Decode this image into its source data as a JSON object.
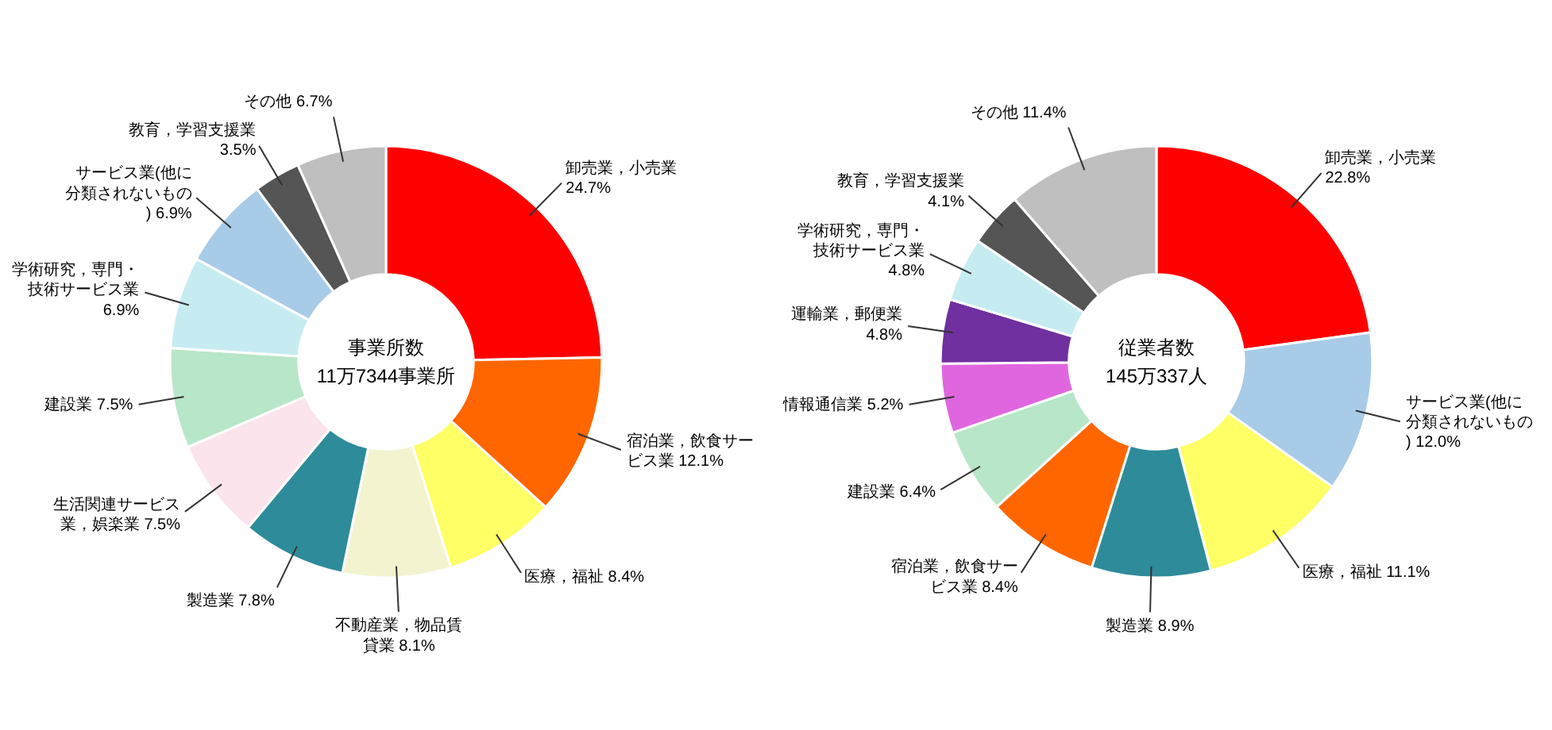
{
  "chart_data": [
    {
      "type": "donut",
      "annotations": [
        "事業所数",
        "11万7344事業所"
      ],
      "data_labels": false,
      "categories": [
        "卸売業，小売業",
        "宿泊業，飲食サービス業",
        "医療，福祉",
        "不動産業，物品賃貸業",
        "製造業",
        "生活関連サービス業，娯楽業",
        "建設業",
        "学術研究，専門・技術サービス業",
        "サービス業(他に分類されないもの)",
        "教育，学習支援業",
        "その他"
      ],
      "values": [
        24.7,
        12.1,
        8.4,
        8.1,
        7.8,
        7.5,
        7.5,
        6.9,
        6.9,
        3.5,
        6.7
      ],
      "value_labels": [
        "24.7%",
        "12.1%",
        "8.4%",
        "8.1%",
        "7.8%",
        "7.5%",
        "7.5%",
        "6.9%",
        "6.9%",
        "3.5%",
        "6.7%"
      ],
      "colors": [
        "#ff0000",
        "#ff6600",
        "#ffff66",
        "#f3f3d0",
        "#2e8b9a",
        "#fbe4ec",
        "#b8e6c8",
        "#c6ecf2",
        "#a8cbe8",
        "#555555",
        "#bfbfbf"
      ]
    },
    {
      "type": "donut",
      "annotations": [
        "従業者数",
        "145万337人"
      ],
      "data_labels": false,
      "categories": [
        "卸売業，小売業",
        "サービス業(他に分類されないもの)",
        "医療，福祉",
        "製造業",
        "宿泊業，飲食サービス業",
        "建設業",
        "情報通信業",
        "運輸業，郵便業",
        "学術研究，専門・技術サービス業",
        "教育，学習支援業",
        "その他"
      ],
      "values": [
        22.8,
        12.0,
        11.1,
        8.9,
        8.4,
        6.4,
        5.2,
        4.8,
        4.8,
        4.1,
        11.4
      ],
      "value_labels": [
        "22.8%",
        "12.0%",
        "11.1%",
        "8.9%",
        "8.4%",
        "6.4%",
        "5.2%",
        "4.8%",
        "4.8%",
        "4.1%",
        "11.4%"
      ],
      "colors": [
        "#ff0000",
        "#a8cbe8",
        "#ffff66",
        "#2e8b9a",
        "#ff6600",
        "#b8e6c8",
        "#e066e0",
        "#7030a0",
        "#c6ecf2",
        "#555555",
        "#bfbfbf"
      ]
    }
  ]
}
